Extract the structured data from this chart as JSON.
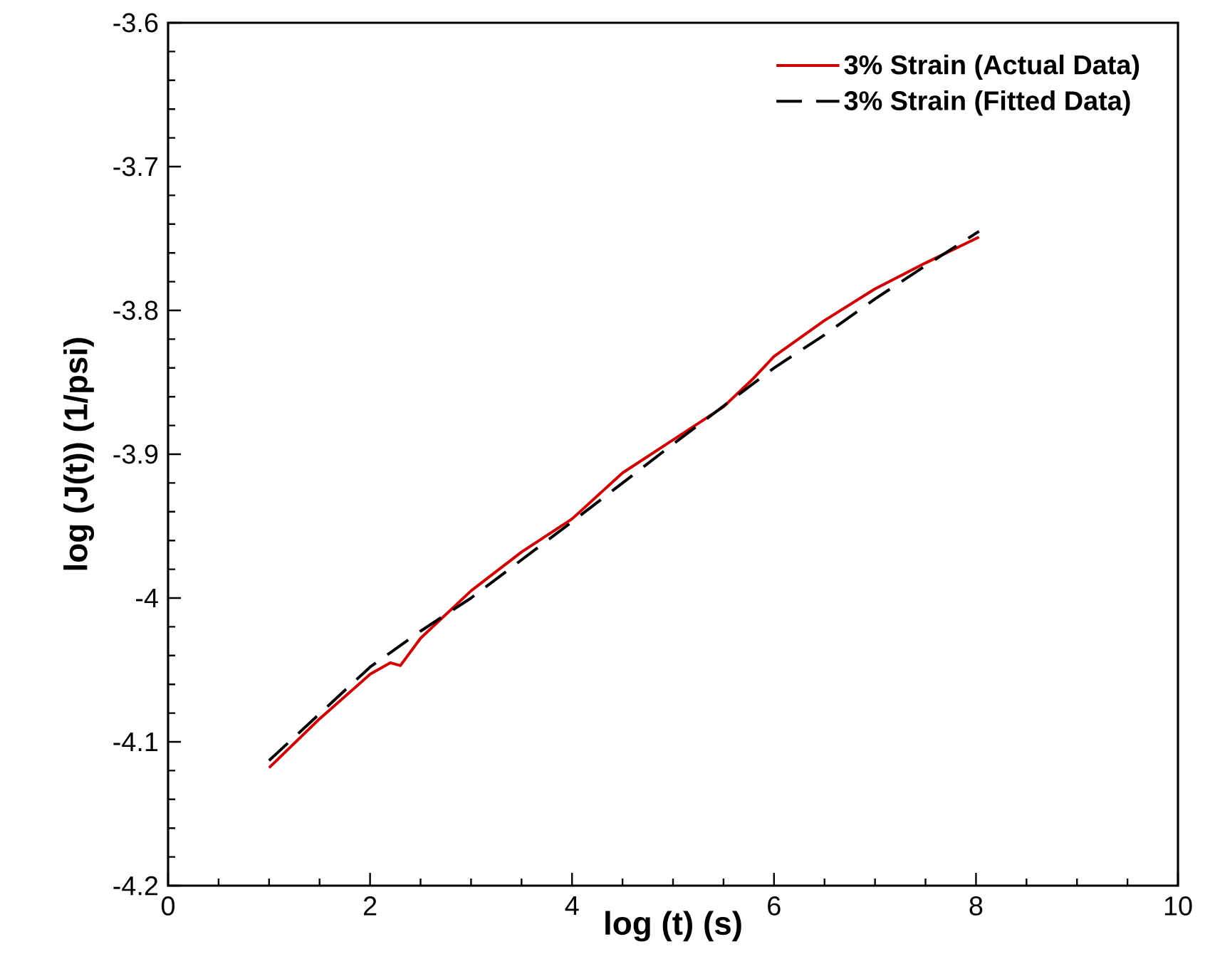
{
  "chart_data": {
    "type": "line",
    "xlabel": "log (t) (s)",
    "ylabel": "log (J(t)) (1/psi)",
    "xlim": [
      0,
      10
    ],
    "ylim": [
      -4.2,
      -3.6
    ],
    "xticks": [
      0,
      2,
      4,
      6,
      8,
      10
    ],
    "yticks": [
      -4.2,
      -4.1,
      -4,
      -3.9,
      -3.8,
      -3.7,
      -3.6
    ],
    "legend": "top right",
    "grid": false,
    "series": [
      {
        "name": "3% Strain (Actual Data)",
        "color": "#d00000",
        "line_style": "solid",
        "x": [
          1,
          1.5,
          2,
          2.2,
          2.3,
          2.5,
          3,
          3.5,
          4,
          4.5,
          5,
          5.5,
          5.8,
          6,
          6.5,
          7,
          7.5,
          8.03
        ],
        "values": [
          -4.118,
          -4.084,
          -4.053,
          -4.045,
          -4.047,
          -4.028,
          -3.995,
          -3.968,
          -3.945,
          -3.913,
          -3.89,
          -3.867,
          -3.847,
          -3.832,
          -3.807,
          -3.785,
          -3.767,
          -3.749
        ]
      },
      {
        "name": "3% Strain (Fitted Data)",
        "color": "#000000",
        "line_style": "dashed",
        "x": [
          1,
          2,
          2.5,
          3,
          4,
          5,
          6,
          6.5,
          7,
          7.5,
          8.03
        ],
        "values": [
          -4.113,
          -4.048,
          -4.023,
          -4.0,
          -3.947,
          -3.893,
          -3.84,
          -3.817,
          -3.792,
          -3.769,
          -3.745
        ]
      }
    ]
  }
}
